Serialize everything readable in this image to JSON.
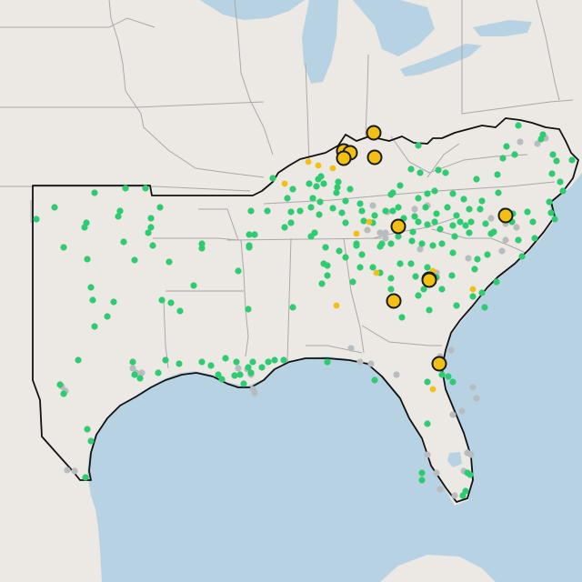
{
  "colors": {
    "land": "#ece8e4",
    "water": "#b7d2e3",
    "state_border": "#a9a9a9",
    "region_outline": "#111111",
    "site_green": "#2ecc71",
    "site_gray": "#b9bcbf",
    "site_orange": "#f2c012",
    "highlight_stroke": "#1a1a1a"
  },
  "legend": [],
  "sites": {
    "green_count": 220,
    "gray_count": 48,
    "small_orange_count": 11,
    "highlighted_orange_count": 11
  }
}
